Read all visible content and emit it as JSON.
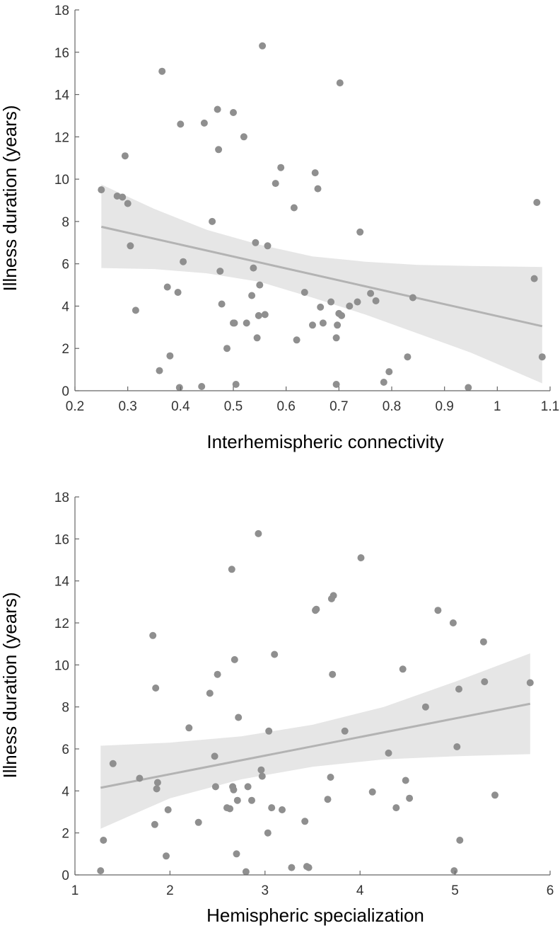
{
  "colors": {
    "points": "#8f8f8f",
    "fit_line": "#b3b3b3",
    "ci_band": "#e6e6e6"
  },
  "chart_data": [
    {
      "type": "scatter",
      "title": "",
      "xlabel": "Interhemispheric connectivity",
      "ylabel": "Illness duration (years)",
      "xlim": [
        0.2,
        1.1
      ],
      "ylim": [
        0,
        18
      ],
      "xticks": [
        "0.2",
        "0.3",
        "0.4",
        "0.5",
        "0.6",
        "0.7",
        "0.8",
        "0.9",
        "1",
        "1.1"
      ],
      "yticks": [
        "0",
        "2",
        "4",
        "6",
        "8",
        "10",
        "12",
        "14",
        "16",
        "18"
      ],
      "grid": false,
      "legend": "none",
      "series": [
        {
          "x": [
            0.25,
            0.28,
            0.29,
            0.295,
            0.3,
            0.305,
            0.315,
            0.36,
            0.365,
            0.375,
            0.38,
            0.395,
            0.398,
            0.4,
            0.405,
            0.44,
            0.445,
            0.46,
            0.47,
            0.472,
            0.475,
            0.478,
            0.488,
            0.5,
            0.5,
            0.502,
            0.505,
            0.52,
            0.525,
            0.535,
            0.538,
            0.542,
            0.545,
            0.548,
            0.55,
            0.555,
            0.56,
            0.565,
            0.58,
            0.59,
            0.615,
            0.62,
            0.635,
            0.65,
            0.655,
            0.66,
            0.665,
            0.67,
            0.685,
            0.695,
            0.695,
            0.697,
            0.7,
            0.702,
            0.705,
            0.72,
            0.735,
            0.74,
            0.76,
            0.77,
            0.785,
            0.795,
            0.83,
            0.84,
            0.945,
            1.07,
            1.075,
            1.085
          ],
          "y": [
            9.5,
            9.2,
            9.15,
            11.1,
            8.85,
            6.85,
            3.8,
            0.95,
            15.1,
            4.9,
            1.65,
            4.65,
            0.15,
            12.6,
            6.1,
            0.2,
            12.65,
            8.0,
            13.3,
            11.4,
            5.65,
            4.1,
            2.0,
            13.15,
            3.2,
            3.2,
            0.3,
            12.0,
            3.2,
            4.5,
            5.8,
            7.0,
            2.5,
            3.55,
            5.0,
            16.3,
            3.6,
            6.85,
            9.8,
            10.55,
            8.65,
            2.4,
            4.65,
            3.1,
            10.3,
            9.55,
            3.95,
            3.2,
            4.2,
            2.5,
            0.3,
            3.1,
            3.65,
            14.55,
            3.55,
            4.0,
            4.2,
            7.5,
            4.6,
            4.25,
            0.4,
            0.9,
            1.6,
            4.4,
            0.15,
            5.3,
            8.9,
            1.6
          ]
        }
      ],
      "fit": {
        "x": [
          0.25,
          1.085
        ],
        "y": [
          7.75,
          3.05
        ]
      },
      "ci": {
        "x": [
          0.25,
          0.35,
          0.45,
          0.55,
          0.65,
          0.75,
          0.85,
          0.95,
          1.085
        ],
        "upper": [
          9.75,
          8.6,
          7.6,
          6.9,
          6.35,
          6.1,
          5.95,
          5.9,
          5.85
        ],
        "lower": [
          5.8,
          5.75,
          5.55,
          5.15,
          4.4,
          3.6,
          2.7,
          1.8,
          0.35
        ]
      }
    },
    {
      "type": "scatter",
      "title": "",
      "xlabel": "Hemispheric specialization",
      "ylabel": "Illness duration (years)",
      "xlim": [
        1,
        6
      ],
      "ylim": [
        0,
        18
      ],
      "xticks": [
        "1",
        "2",
        "3",
        "4",
        "5",
        "6"
      ],
      "yticks": [
        "0",
        "2",
        "4",
        "6",
        "8",
        "10",
        "12",
        "14",
        "16",
        "18"
      ],
      "grid": false,
      "legend": "none",
      "series": [
        {
          "x": [
            1.27,
            1.3,
            1.4,
            1.68,
            1.82,
            1.84,
            1.85,
            1.86,
            1.87,
            1.96,
            1.98,
            2.2,
            2.3,
            2.42,
            2.47,
            2.48,
            2.5,
            2.6,
            2.63,
            2.65,
            2.66,
            2.67,
            2.68,
            2.7,
            2.71,
            2.72,
            2.8,
            2.82,
            2.86,
            2.93,
            2.96,
            2.97,
            3.03,
            3.04,
            3.07,
            3.1,
            3.18,
            3.28,
            3.42,
            3.44,
            3.46,
            3.53,
            3.54,
            3.66,
            3.69,
            3.7,
            3.71,
            3.72,
            3.84,
            4.01,
            4.13,
            4.3,
            4.38,
            4.45,
            4.48,
            4.52,
            4.69,
            4.82,
            4.98,
            4.99,
            5.02,
            5.04,
            5.05,
            5.3,
            5.31,
            5.42,
            5.79
          ],
          "y": [
            0.2,
            1.65,
            5.3,
            4.6,
            11.4,
            2.4,
            8.9,
            4.1,
            4.4,
            0.9,
            3.1,
            7.0,
            2.5,
            8.65,
            5.65,
            4.2,
            9.55,
            3.2,
            3.15,
            14.55,
            4.2,
            4.05,
            10.25,
            1.0,
            3.55,
            7.5,
            0.15,
            4.2,
            3.55,
            16.25,
            5.0,
            4.7,
            2.0,
            6.85,
            3.2,
            10.5,
            3.1,
            0.35,
            2.55,
            0.4,
            0.35,
            12.6,
            12.65,
            3.6,
            4.65,
            13.15,
            9.55,
            13.3,
            6.85,
            15.1,
            3.95,
            5.8,
            3.2,
            9.8,
            4.5,
            3.65,
            8.0,
            12.6,
            12.0,
            0.2,
            6.1,
            8.85,
            1.65,
            11.1,
            9.2,
            3.8,
            9.15
          ]
        }
      ],
      "fit": {
        "x": [
          1.27,
          5.79
        ],
        "y": [
          4.15,
          8.15
        ]
      },
      "ci": {
        "x": [
          1.27,
          2.0,
          2.75,
          3.5,
          4.25,
          5.0,
          5.79
        ],
        "upper": [
          6.15,
          6.3,
          6.6,
          7.15,
          8.0,
          9.2,
          10.55
        ],
        "lower": [
          2.2,
          3.65,
          4.55,
          5.15,
          5.5,
          5.65,
          5.75
        ]
      }
    }
  ]
}
